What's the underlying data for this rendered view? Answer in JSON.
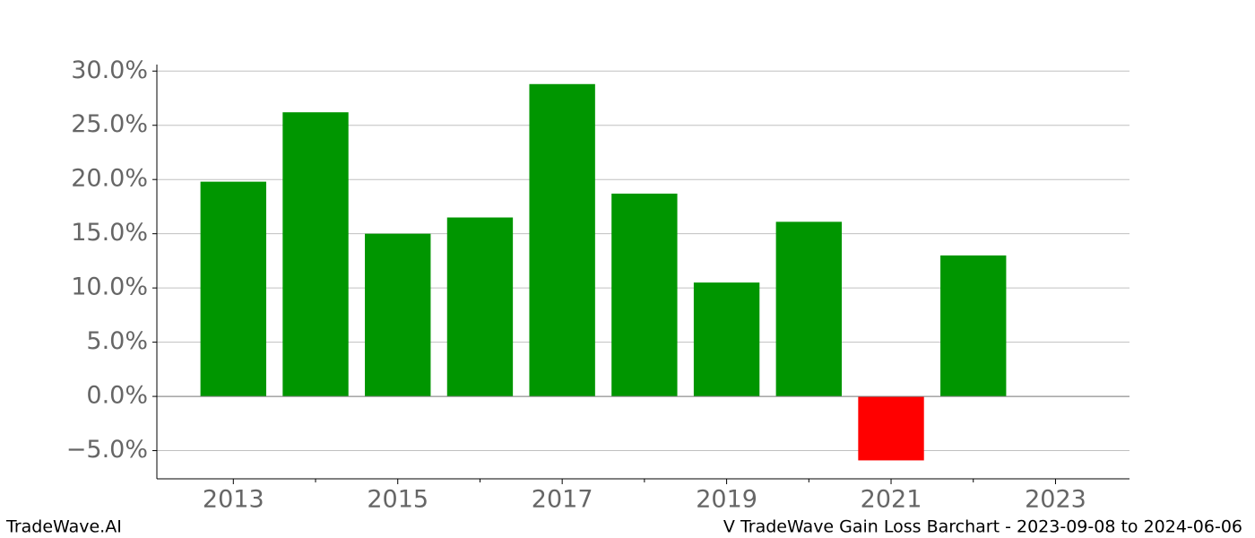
{
  "chart_data": {
    "type": "bar",
    "title": "V TradeWave Gain Loss Barchart - 2023-09-08 to 2024-06-06",
    "watermark": "TradeWave.AI",
    "x": [
      2013,
      2014,
      2015,
      2016,
      2017,
      2018,
      2019,
      2020,
      2021,
      2022
    ],
    "values": [
      19.8,
      26.2,
      15.0,
      16.5,
      28.8,
      18.7,
      10.5,
      16.1,
      -5.9,
      13.0
    ],
    "colors": [
      "#009600",
      "#009600",
      "#009600",
      "#009600",
      "#009600",
      "#009600",
      "#009600",
      "#009600",
      "#ff0000",
      "#009600"
    ],
    "bar_width": 0.8,
    "xlim": [
      2012.07,
      2023.9
    ],
    "xticks": [
      2013,
      2015,
      2017,
      2019,
      2021,
      2023
    ],
    "xminorticks": [
      2014,
      2016,
      2018,
      2020,
      2022
    ],
    "ylim": [
      -7.6,
      30.6
    ],
    "yticks": [
      {
        "value": -5,
        "label": "−5.0%"
      },
      {
        "value": 0,
        "label": "0.0%"
      },
      {
        "value": 5,
        "label": "5.0%"
      },
      {
        "value": 10,
        "label": "10.0%"
      },
      {
        "value": 15,
        "label": "15.0%"
      },
      {
        "value": 20,
        "label": "20.0%"
      },
      {
        "value": 25,
        "label": "25.0%"
      },
      {
        "value": 30,
        "label": "30.0%"
      }
    ],
    "grid": true
  }
}
